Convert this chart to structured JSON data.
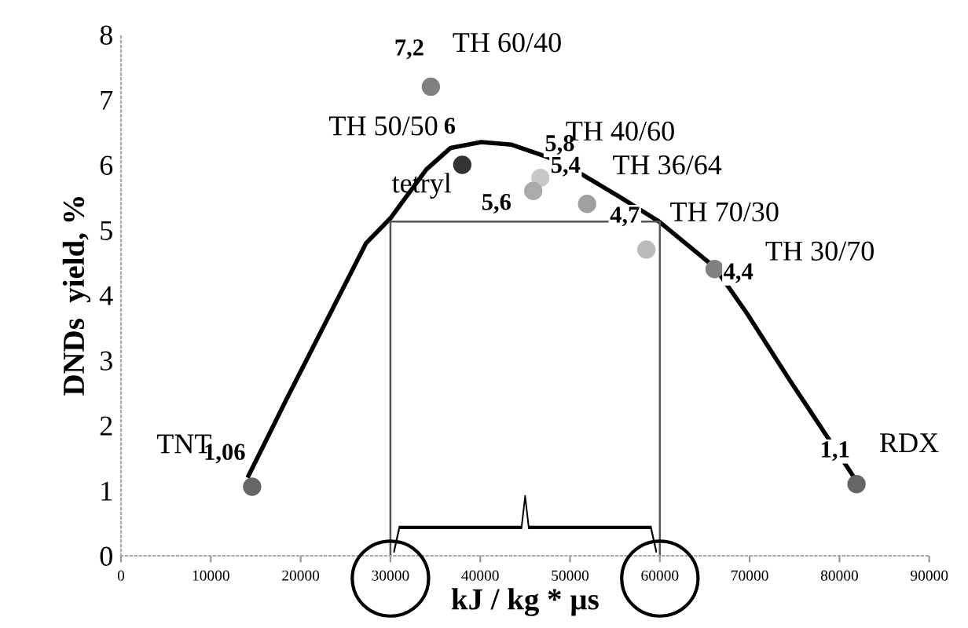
{
  "chart_data": {
    "type": "scatter",
    "xlabel": "kJ / kg * µs",
    "ylabel": "DNDs  yield, %",
    "xlim": [
      0,
      90000
    ],
    "xticks": [
      0,
      10000,
      20000,
      30000,
      40000,
      50000,
      60000,
      70000,
      80000,
      90000
    ],
    "ylim": [
      0,
      8
    ],
    "yticks": [
      0,
      1,
      2,
      3,
      4,
      5,
      6,
      7,
      8
    ],
    "grid": false,
    "legend": false,
    "marker": "circle",
    "series": [
      {
        "x": [
          14600,
          34500,
          38000,
          46700,
          45900,
          51900,
          58500,
          66100,
          81900
        ],
        "values": [
          1.06,
          7.2,
          6,
          5.8,
          5.6,
          5.4,
          4.7,
          4.4,
          1.1
        ],
        "colors": [
          "#666666",
          "#808080",
          "#333333",
          "#c8c8c8",
          "#aaaaaa",
          "#a0a0a0",
          "#bbbbbb",
          "#808080",
          "#666666"
        ],
        "value_labels": [
          "1,06",
          "7,2",
          "6",
          "5,8",
          "5,6",
          "5,4",
          "4,7",
          "4,4",
          "1,1"
        ]
      },
      {
        "type": "line",
        "marker": "none",
        "color": "#000000",
        "x": [
          14200,
          18600,
          23300,
          27300,
          30000,
          34000,
          36700,
          40100,
          43500,
          47500,
          51500,
          55500,
          59900,
          66100,
          69700,
          74300,
          81500
        ],
        "values": [
          1.23,
          2.45,
          3.72,
          4.8,
          5.18,
          5.93,
          6.26,
          6.35,
          6.31,
          6.12,
          5.84,
          5.51,
          5.13,
          4.43,
          3.72,
          2.73,
          1.23
        ]
      },
      {
        "type": "line",
        "marker": "none",
        "color": "#555555",
        "x": [
          30000,
          30000,
          60000,
          60000
        ],
        "values": [
          0,
          5.13,
          5.13,
          0
        ]
      }
    ],
    "annotations": [
      "TNT",
      "TH 60/40",
      "TH 50/50",
      "TH 40/60",
      "tetryl",
      "TH 36/64",
      "TH 70/30",
      "TH 30/70",
      "RDX"
    ]
  }
}
